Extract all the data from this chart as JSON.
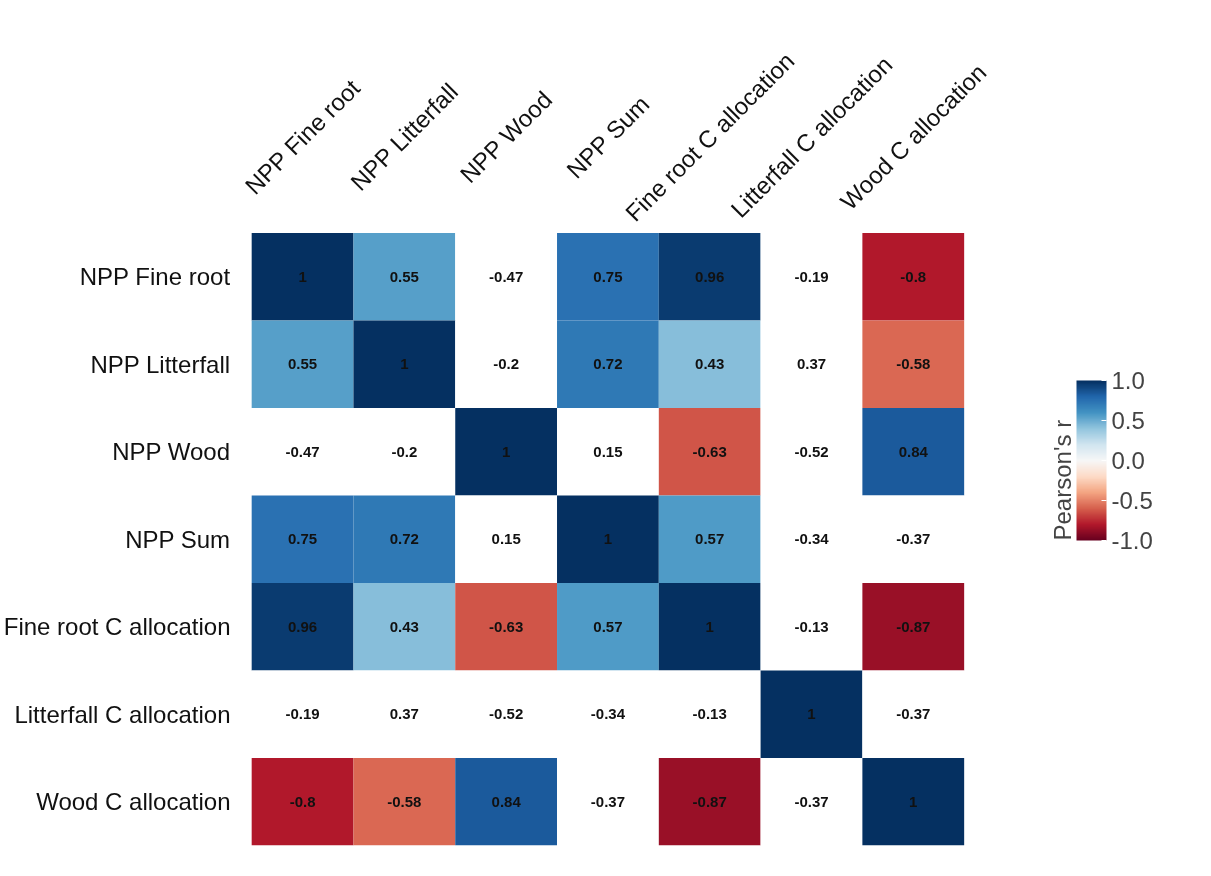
{
  "chart_data": {
    "type": "heatmap",
    "categories": [
      "NPP Fine root",
      "NPP Litterfall",
      "NPP Wood",
      "NPP Sum",
      "Fine root C allocation",
      "Litterfall C allocation",
      "Wood C allocation"
    ],
    "y_categories": [
      "NPP Fine root",
      "NPP Litterfall",
      "NPP Wood",
      "NPP Sum",
      "Fine root C allocation",
      "Litterfall C allocation",
      "Wood C allocation"
    ],
    "cells": [
      [
        1,
        0.55,
        null,
        0.75,
        0.96,
        null,
        -0.8
      ],
      [
        0.55,
        1,
        null,
        0.72,
        0.43,
        null,
        -0.58
      ],
      [
        null,
        null,
        1,
        null,
        -0.63,
        null,
        0.84
      ],
      [
        0.75,
        0.72,
        null,
        1,
        0.57,
        null,
        null
      ],
      [
        0.96,
        0.43,
        -0.63,
        0.57,
        1,
        null,
        -0.87
      ],
      [
        null,
        null,
        null,
        null,
        null,
        1,
        null
      ],
      [
        -0.8,
        -0.58,
        0.84,
        null,
        -0.87,
        null,
        1
      ]
    ],
    "cell_labels": [
      [
        "1",
        "0.55",
        "-0.47",
        "0.75",
        "0.96",
        "-0.19",
        "-0.8"
      ],
      [
        "0.55",
        "1",
        "-0.2",
        "0.72",
        "0.43",
        "0.37",
        "-0.58"
      ],
      [
        "-0.47",
        "-0.2",
        "1",
        "0.15",
        "-0.63",
        "-0.52",
        "0.84"
      ],
      [
        "0.75",
        "0.72",
        "0.15",
        "1",
        "0.57",
        "-0.34",
        "-0.37"
      ],
      [
        "0.96",
        "0.43",
        "-0.63",
        "0.57",
        "1",
        "-0.13",
        "-0.87"
      ],
      [
        "-0.19",
        "0.37",
        "-0.52",
        "-0.34",
        "-0.13",
        "1",
        "-0.37"
      ],
      [
        "-0.8",
        "-0.58",
        "0.84",
        "-0.37",
        "-0.87",
        "-0.37",
        "1"
      ]
    ],
    "clabel": "Pearson's r",
    "clim": [
      -1,
      1
    ],
    "cticks": [
      {
        "value": -1,
        "label": "-1.0"
      },
      {
        "value": -0.5,
        "label": "-0.5"
      },
      {
        "value": 0,
        "label": "0.0"
      },
      {
        "value": 0.5,
        "label": "0.5"
      },
      {
        "value": 1,
        "label": "1.0"
      }
    ]
  }
}
